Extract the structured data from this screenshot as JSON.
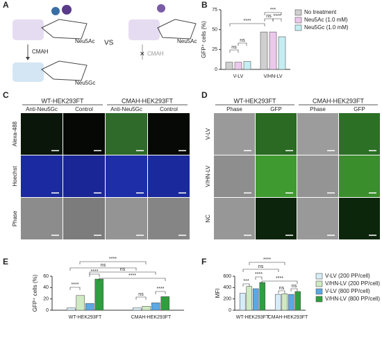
{
  "panel_labels": [
    "A",
    "B",
    "C",
    "D",
    "E",
    "F"
  ],
  "diagram": {
    "top_left": "Neu5Ac",
    "arrow": "CMAH",
    "bottom_left": "Neu5Gc",
    "versus": "VS",
    "top_right": "Neu5Ac",
    "crossed_arrow": "CMAH"
  },
  "microscopy_c": {
    "groups": [
      "WT-HEK293FT",
      "CMAH-HEK293FT"
    ],
    "columns": [
      "Anti-Neu5Gc",
      "Control",
      "Anti-Neu5Gc",
      "Control"
    ],
    "rows": [
      "Alexa-488",
      "Hoechst",
      "Phase"
    ]
  },
  "microscopy_d": {
    "groups": [
      "WT-HEK293FT",
      "CMAH-HEK293FT"
    ],
    "columns": [
      "Phase",
      "GFP",
      "Phase",
      "GFP"
    ],
    "rows": [
      "V-LV",
      "V/HN-LV",
      "NC"
    ]
  },
  "chart_data": [
    {
      "type": "bar",
      "y_label": "GFP⁺ cells (%)",
      "categories": [
        "V-LV",
        "V/HN-LV"
      ],
      "series": [
        {
          "name": "No treatment",
          "color": "#cfcfcf",
          "values": [
            9,
            47
          ]
        },
        {
          "name": "Neu5Ac (1.0 mM)",
          "color": "#ecc8ec",
          "values": [
            9,
            47
          ]
        },
        {
          "name": "Neu5Gc (1.0 mM)",
          "color": "#c4eef2",
          "values": [
            10,
            41
          ]
        }
      ],
      "ylim": [
        0,
        75
      ],
      "yticks": [
        0,
        25,
        50,
        75
      ],
      "annotations": [
        "****",
        "***",
        "ns",
        "ns",
        "ns",
        "****"
      ]
    },
    {
      "type": "bar",
      "y_label": "GFP⁺ cells (%)",
      "categories": [
        "WT-HEK293FT",
        "CMAH-HEK293FT"
      ],
      "series": [
        {
          "color": "#d6edf8",
          "values": [
            4,
            4
          ]
        },
        {
          "color": "#cfeac2",
          "values": [
            26,
            7
          ]
        },
        {
          "color": "#5ba8e2",
          "values": [
            12,
            13
          ]
        },
        {
          "color": "#2f9e3f",
          "values": [
            55,
            24
          ]
        }
      ],
      "ylim": [
        0,
        60
      ],
      "yticks": [
        0,
        20,
        40,
        60
      ],
      "annotations": [
        "****",
        "ns",
        "ns",
        "****",
        "****",
        "****",
        "ns",
        "****"
      ]
    },
    {
      "type": "bar",
      "y_label": "MFI",
      "categories": [
        "WT-HEK293FT",
        "CMAH-HEK293FT"
      ],
      "series": [
        {
          "name": "V-LV (200 PP/cell)",
          "color": "#d6edf8",
          "values": [
            300,
            280
          ]
        },
        {
          "name": "V/HN-LV (200 PP/cell)",
          "color": "#cfeac2",
          "values": [
            420,
            290
          ]
        },
        {
          "name": "V-LV (800 PP/cell)",
          "color": "#5ba8e2",
          "values": [
            380,
            280
          ]
        },
        {
          "name": "V/HN-LV (800 PP/cell)",
          "color": "#2f9e3f",
          "values": [
            490,
            330
          ]
        }
      ],
      "ylim": [
        0,
        600
      ],
      "yticks": [
        0,
        200,
        400,
        600
      ],
      "annotations": [
        "****",
        "ns",
        "***",
        "****",
        "****",
        "ns",
        "ns"
      ]
    }
  ]
}
